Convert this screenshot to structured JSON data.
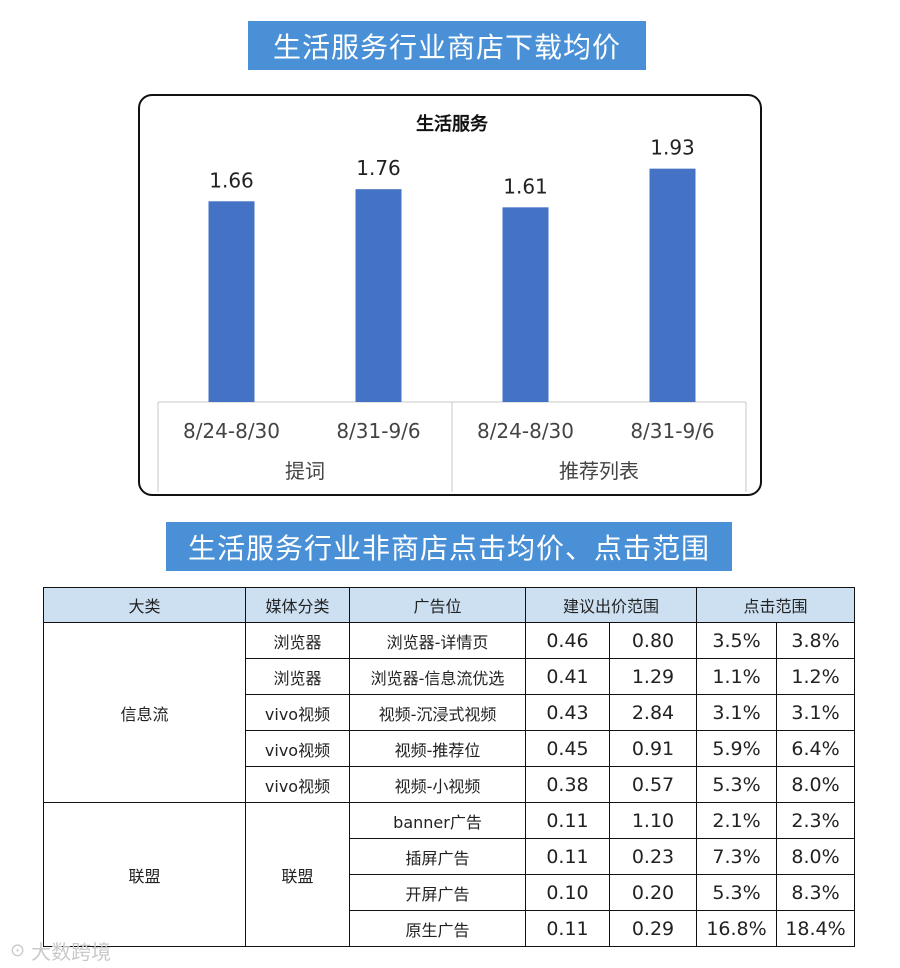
{
  "titles": {
    "chart_banner": "生活服务行业商店下载均价",
    "table_banner": "生活服务行业非商店点击均价、点击范围"
  },
  "chart_data": {
    "type": "bar",
    "title": "生活服务",
    "color": "#4472c4",
    "groups": [
      {
        "label": "提词",
        "categories": [
          "8/24-8/30",
          "8/31-9/6"
        ],
        "values": [
          1.66,
          1.76
        ]
      },
      {
        "label": "推荐列表",
        "categories": [
          "8/24-8/30",
          "8/31-9/6"
        ],
        "values": [
          1.61,
          1.93
        ]
      }
    ],
    "ylim": [
      0,
      2.2
    ]
  },
  "table": {
    "headers": [
      "大类",
      "媒体分类",
      "广告位",
      "建议出价范围",
      "点击范围"
    ],
    "groups": [
      {
        "category": "信息流",
        "rows": [
          {
            "media": "浏览器",
            "slot": "浏览器-详情页",
            "bid_low": "0.46",
            "bid_high": "0.80",
            "click_low": "3.5%",
            "click_high": "3.8%"
          },
          {
            "media": "浏览器",
            "slot": "浏览器-信息流优选",
            "bid_low": "0.41",
            "bid_high": "1.29",
            "click_low": "1.1%",
            "click_high": "1.2%"
          },
          {
            "media": "vivo视频",
            "slot": "视频-沉浸式视频",
            "bid_low": "0.43",
            "bid_high": "2.84",
            "click_low": "3.1%",
            "click_high": "3.1%"
          },
          {
            "media": "vivo视频",
            "slot": "视频-推荐位",
            "bid_low": "0.45",
            "bid_high": "0.91",
            "click_low": "5.9%",
            "click_high": "6.4%"
          },
          {
            "media": "vivo视频",
            "slot": "视频-小视频",
            "bid_low": "0.38",
            "bid_high": "0.57",
            "click_low": "5.3%",
            "click_high": "8.0%"
          }
        ]
      },
      {
        "category": "联盟",
        "media": "联盟",
        "rows": [
          {
            "slot": "banner广告",
            "bid_low": "0.11",
            "bid_high": "1.10",
            "click_low": "2.1%",
            "click_high": "2.3%"
          },
          {
            "slot": "插屏广告",
            "bid_low": "0.11",
            "bid_high": "0.23",
            "click_low": "7.3%",
            "click_high": "8.0%"
          },
          {
            "slot": "开屏广告",
            "bid_low": "0.10",
            "bid_high": "0.20",
            "click_low": "5.3%",
            "click_high": "8.3%"
          },
          {
            "slot": "原生广告",
            "bid_low": "0.11",
            "bid_high": "0.29",
            "click_low": "16.8%",
            "click_high": "18.4%"
          }
        ]
      }
    ]
  },
  "watermark": "大数跨境"
}
